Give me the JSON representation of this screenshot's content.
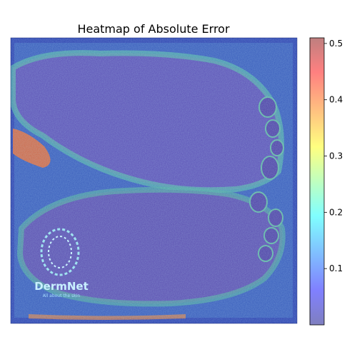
{
  "chart_data": {
    "type": "heatmap",
    "title": "Heatmap of Absolute Error",
    "colorbar": {
      "colormap": "jet",
      "alpha": 0.5,
      "min": 0.0,
      "max": 0.51,
      "ticks": [
        0.1,
        0.2,
        0.3,
        0.4,
        0.5
      ],
      "tick_labels": [
        "0.1",
        "0.2",
        "0.3",
        "0.4",
        "0.5"
      ]
    },
    "background_image": {
      "watermark_text": "DermNet",
      "watermark_subtext": "All about the skin"
    },
    "axes": {
      "ticks_shown": false
    }
  }
}
